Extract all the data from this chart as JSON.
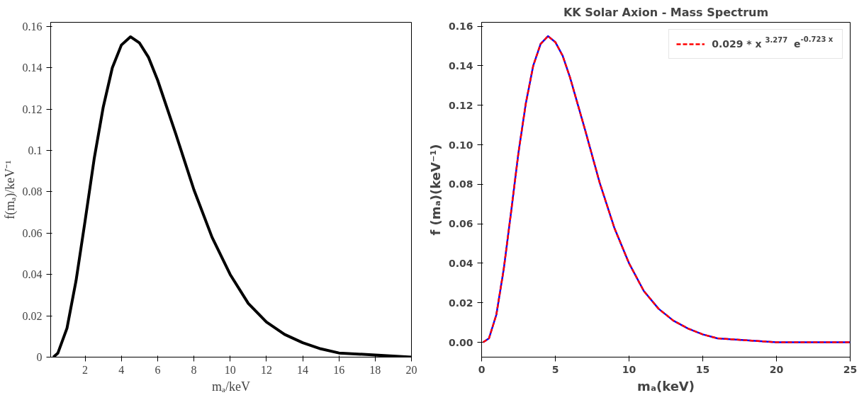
{
  "chart_data": [
    {
      "type": "line",
      "xlabel": "mₐ/keV",
      "ylabel": "f(mₐ)/keV⁻¹",
      "x": [
        0.25,
        0.5,
        1,
        1.5,
        2,
        2.5,
        3,
        3.5,
        4,
        4.5,
        5,
        5.5,
        6,
        7,
        8,
        9,
        10,
        11,
        12,
        13,
        14,
        15,
        16,
        18,
        20
      ],
      "series": [
        {
          "color": "#000000",
          "line_style": "solid",
          "values": [
            0.0,
            0.002,
            0.014,
            0.037,
            0.066,
            0.096,
            0.121,
            0.14,
            0.151,
            0.155,
            0.152,
            0.145,
            0.134,
            0.108,
            0.081,
            0.058,
            0.04,
            0.026,
            0.017,
            0.011,
            0.007,
            0.004,
            0.002,
            0.001,
            0.0
          ]
        }
      ],
      "xlim": [
        0.1,
        20
      ],
      "ylim": [
        0,
        0.162
      ],
      "xticks": [
        2,
        4,
        6,
        8,
        10,
        12,
        14,
        16,
        18,
        20
      ],
      "yticks": [
        0,
        0.02,
        0.04,
        0.06,
        0.08,
        0.1,
        0.12,
        0.14,
        0.16
      ],
      "grid": false,
      "legend": false
    },
    {
      "type": "line",
      "title": "KK Solar Axion - Mass Spectrum",
      "xlabel": "mₐ(keV)",
      "ylabel": "f (mₐ)(keV⁻¹)",
      "x": [
        0.1,
        0.5,
        1,
        1.5,
        2,
        2.5,
        3,
        3.5,
        4,
        4.5,
        5,
        5.5,
        6,
        7,
        8,
        9,
        10,
        11,
        12,
        13,
        14,
        15,
        16,
        18,
        20,
        22,
        25
      ],
      "series": [
        {
          "color": "#0000ff",
          "line_style": "solid",
          "values": [
            0.0,
            0.002,
            0.014,
            0.037,
            0.066,
            0.096,
            0.121,
            0.14,
            0.151,
            0.155,
            0.152,
            0.145,
            0.134,
            0.108,
            0.081,
            0.058,
            0.04,
            0.026,
            0.017,
            0.011,
            0.007,
            0.004,
            0.002,
            0.001,
            0.0,
            0.0,
            0.0
          ]
        },
        {
          "name": "0.029 * x$^{3.277}$ e$^{-0.723 x}$",
          "color": "#ff0000",
          "line_style": "dashed",
          "values": [
            0.0,
            0.002,
            0.014,
            0.037,
            0.066,
            0.096,
            0.121,
            0.14,
            0.151,
            0.155,
            0.152,
            0.145,
            0.134,
            0.108,
            0.081,
            0.058,
            0.04,
            0.026,
            0.017,
            0.011,
            0.007,
            0.004,
            0.002,
            0.001,
            0.0,
            0.0,
            0.0
          ]
        }
      ],
      "xlim": [
        0,
        25
      ],
      "ylim": [
        -0.0075,
        0.162
      ],
      "xticks": [
        0,
        5,
        10,
        15,
        20,
        25
      ],
      "yticks": [
        {
          "value": 0,
          "label": "0.00"
        },
        {
          "value": 0.02,
          "label": "0.02"
        },
        {
          "value": 0.04,
          "label": "0.04"
        },
        {
          "value": 0.06,
          "label": "0.06"
        },
        {
          "value": 0.08,
          "label": "0.08"
        },
        {
          "value": 0.1,
          "label": "0.10"
        },
        {
          "value": 0.12,
          "label": "0.12"
        },
        {
          "value": 0.14,
          "label": "0.14"
        },
        {
          "value": 0.16,
          "label": "0.16"
        }
      ],
      "grid": false,
      "legend": "top right"
    }
  ]
}
